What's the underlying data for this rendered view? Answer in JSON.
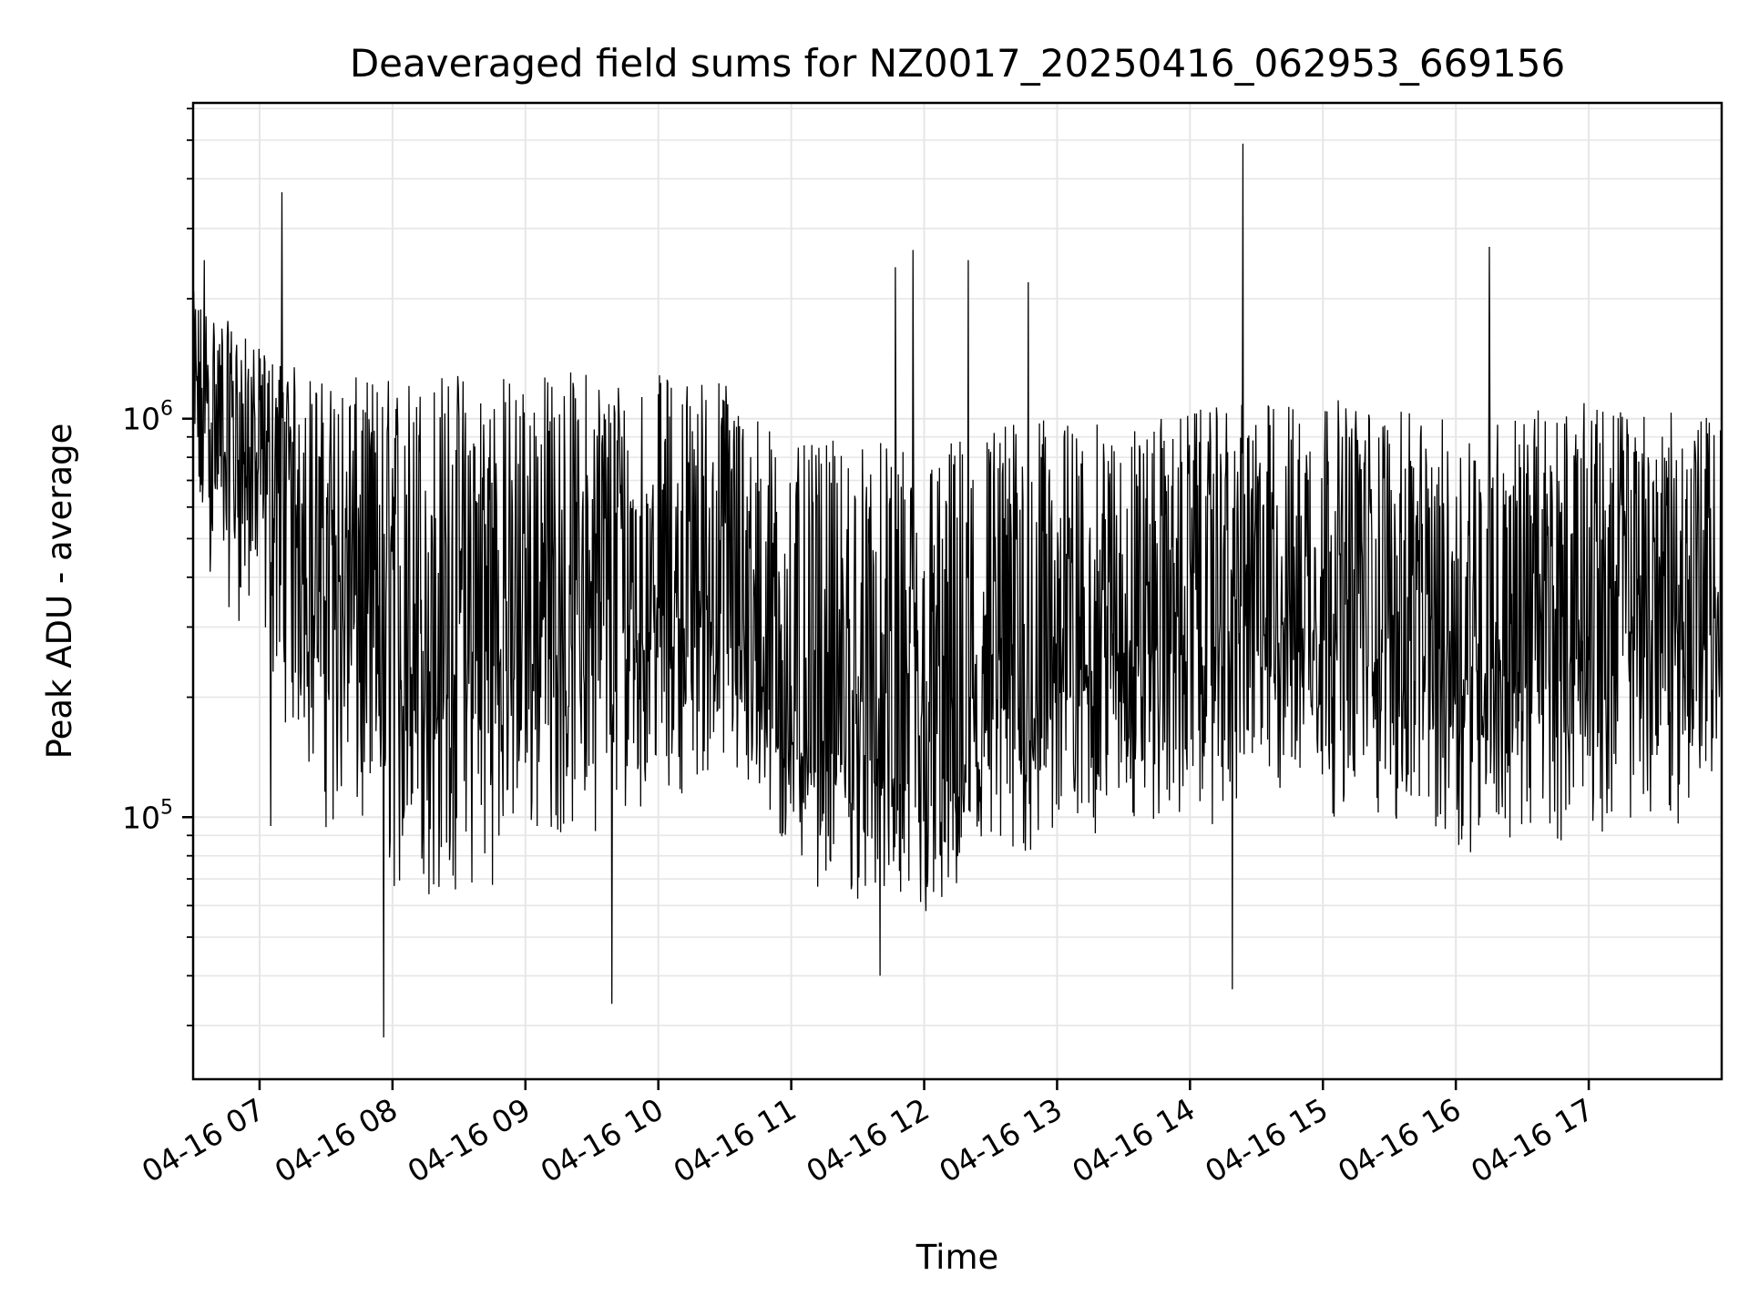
{
  "chart_data": {
    "type": "line",
    "title": "Deaveraged field sums for NZ0017_20250416_062953_669156",
    "xlabel": "Time",
    "ylabel": "Peak ADU - average",
    "y_scale": "log",
    "xlim": [
      "2025-04-16 06:30:00",
      "2025-04-16 18:00:00"
    ],
    "ylim": [
      22000,
      6200000
    ],
    "x_ticks": [
      {
        "value": "2025-04-16 07:00",
        "label": "04-16 07"
      },
      {
        "value": "2025-04-16 08:00",
        "label": "04-16 08"
      },
      {
        "value": "2025-04-16 09:00",
        "label": "04-16 09"
      },
      {
        "value": "2025-04-16 10:00",
        "label": "04-16 10"
      },
      {
        "value": "2025-04-16 11:00",
        "label": "04-16 11"
      },
      {
        "value": "2025-04-16 12:00",
        "label": "04-16 12"
      },
      {
        "value": "2025-04-16 13:00",
        "label": "04-16 13"
      },
      {
        "value": "2025-04-16 14:00",
        "label": "04-16 14"
      },
      {
        "value": "2025-04-16 15:00",
        "label": "04-16 15"
      },
      {
        "value": "2025-04-16 16:00",
        "label": "04-16 16"
      },
      {
        "value": "2025-04-16 17:00",
        "label": "04-16 17"
      }
    ],
    "y_ticks": [
      {
        "value": 100000,
        "base": "10",
        "exponent": "5"
      },
      {
        "value": 1000000,
        "base": "10",
        "exponent": "6"
      }
    ],
    "grid": true,
    "line_color": "#000000",
    "grid_color": "#e6e6e6",
    "series_envelope": {
      "description_times": [
        "06:30",
        "07:00",
        "07:30",
        "08:00",
        "08:30",
        "09:00",
        "09:30",
        "10:00",
        "10:30",
        "11:00",
        "11:30",
        "12:00",
        "12:30",
        "13:00",
        "13:30",
        "14:00",
        "14:30",
        "15:00",
        "15:30",
        "16:00",
        "16:30",
        "17:00",
        "17:30",
        "18:00"
      ],
      "median": [
        1050000,
        780000,
        420000,
        260000,
        260000,
        300000,
        330000,
        320000,
        340000,
        170000,
        150000,
        110000,
        180000,
        240000,
        270000,
        300000,
        320000,
        330000,
        300000,
        260000,
        250000,
        300000,
        330000,
        330000
      ],
      "low": [
        450000,
        250000,
        90000,
        60000,
        55000,
        80000,
        90000,
        110000,
        120000,
        70000,
        60000,
        50000,
        60000,
        80000,
        90000,
        90000,
        100000,
        100000,
        90000,
        80000,
        80000,
        90000,
        90000,
        100000
      ],
      "high": [
        2100000,
        1500000,
        1250000,
        1300000,
        1350000,
        1300000,
        1350000,
        1300000,
        1300000,
        850000,
        900000,
        850000,
        1000000,
        1000000,
        950000,
        1050000,
        1100000,
        1150000,
        1050000,
        1000000,
        1050000,
        1100000,
        1050000,
        1000000
      ]
    },
    "spikes": [
      {
        "x": "2025-04-16 07:10",
        "y": 3700000
      },
      {
        "x": "2025-04-16 06:35",
        "y": 2500000
      },
      {
        "x": "2025-04-16 07:05",
        "y": 95000
      },
      {
        "x": "2025-04-16 07:56",
        "y": 28000
      },
      {
        "x": "2025-04-16 09:39",
        "y": 34000
      },
      {
        "x": "2025-04-16 11:47",
        "y": 2400000
      },
      {
        "x": "2025-04-16 11:55",
        "y": 2650000
      },
      {
        "x": "2025-04-16 12:20",
        "y": 2500000
      },
      {
        "x": "2025-04-16 12:47",
        "y": 2200000
      },
      {
        "x": "2025-04-16 14:24",
        "y": 4900000
      },
      {
        "x": "2025-04-16 14:19",
        "y": 37000
      },
      {
        "x": "2025-04-16 16:15",
        "y": 2700000
      },
      {
        "x": "2025-04-16 11:40",
        "y": 40000
      }
    ]
  }
}
